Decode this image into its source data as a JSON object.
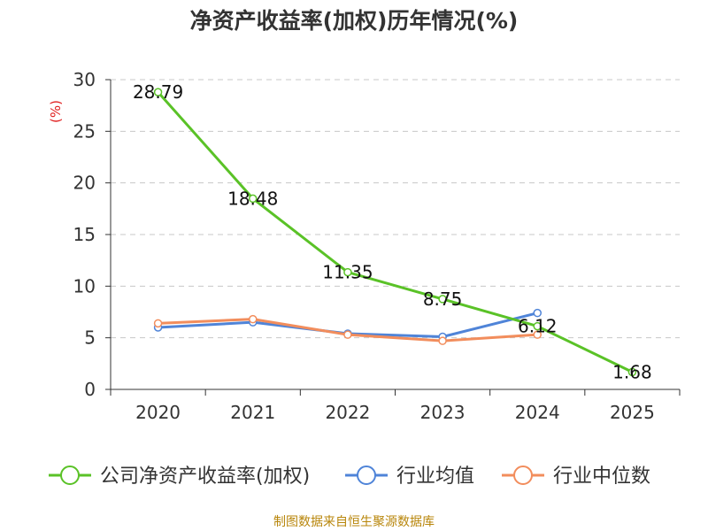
{
  "chart_data": {
    "type": "line",
    "title": "净资产收益率(加权)历年情况(%)",
    "ylabel": "(%)",
    "xlabel": "",
    "categories": [
      "2020",
      "2021",
      "2022",
      "2023",
      "2024",
      "2025"
    ],
    "ylim": [
      0,
      30
    ],
    "yticks": [
      0,
      5,
      10,
      15,
      20,
      25,
      30
    ],
    "grid": true,
    "legend_position": "bottom",
    "series": [
      {
        "name": "公司净资产收益率(加权)",
        "color": "#5ac227",
        "values": [
          28.79,
          18.48,
          11.35,
          8.75,
          6.12,
          1.68
        ],
        "labels": [
          "28.79",
          "18.48",
          "11.35",
          "8.75",
          "6.12",
          "1.68"
        ]
      },
      {
        "name": "行业均值",
        "color": "#4f84d8",
        "values": [
          6.0,
          6.5,
          5.4,
          5.1,
          7.4,
          null
        ]
      },
      {
        "name": "行业中位数",
        "color": "#f28d5c",
        "values": [
          6.4,
          6.8,
          5.3,
          4.7,
          5.3,
          null
        ]
      }
    ]
  },
  "footer": {
    "source": "制图数据来自恒生聚源数据库"
  }
}
